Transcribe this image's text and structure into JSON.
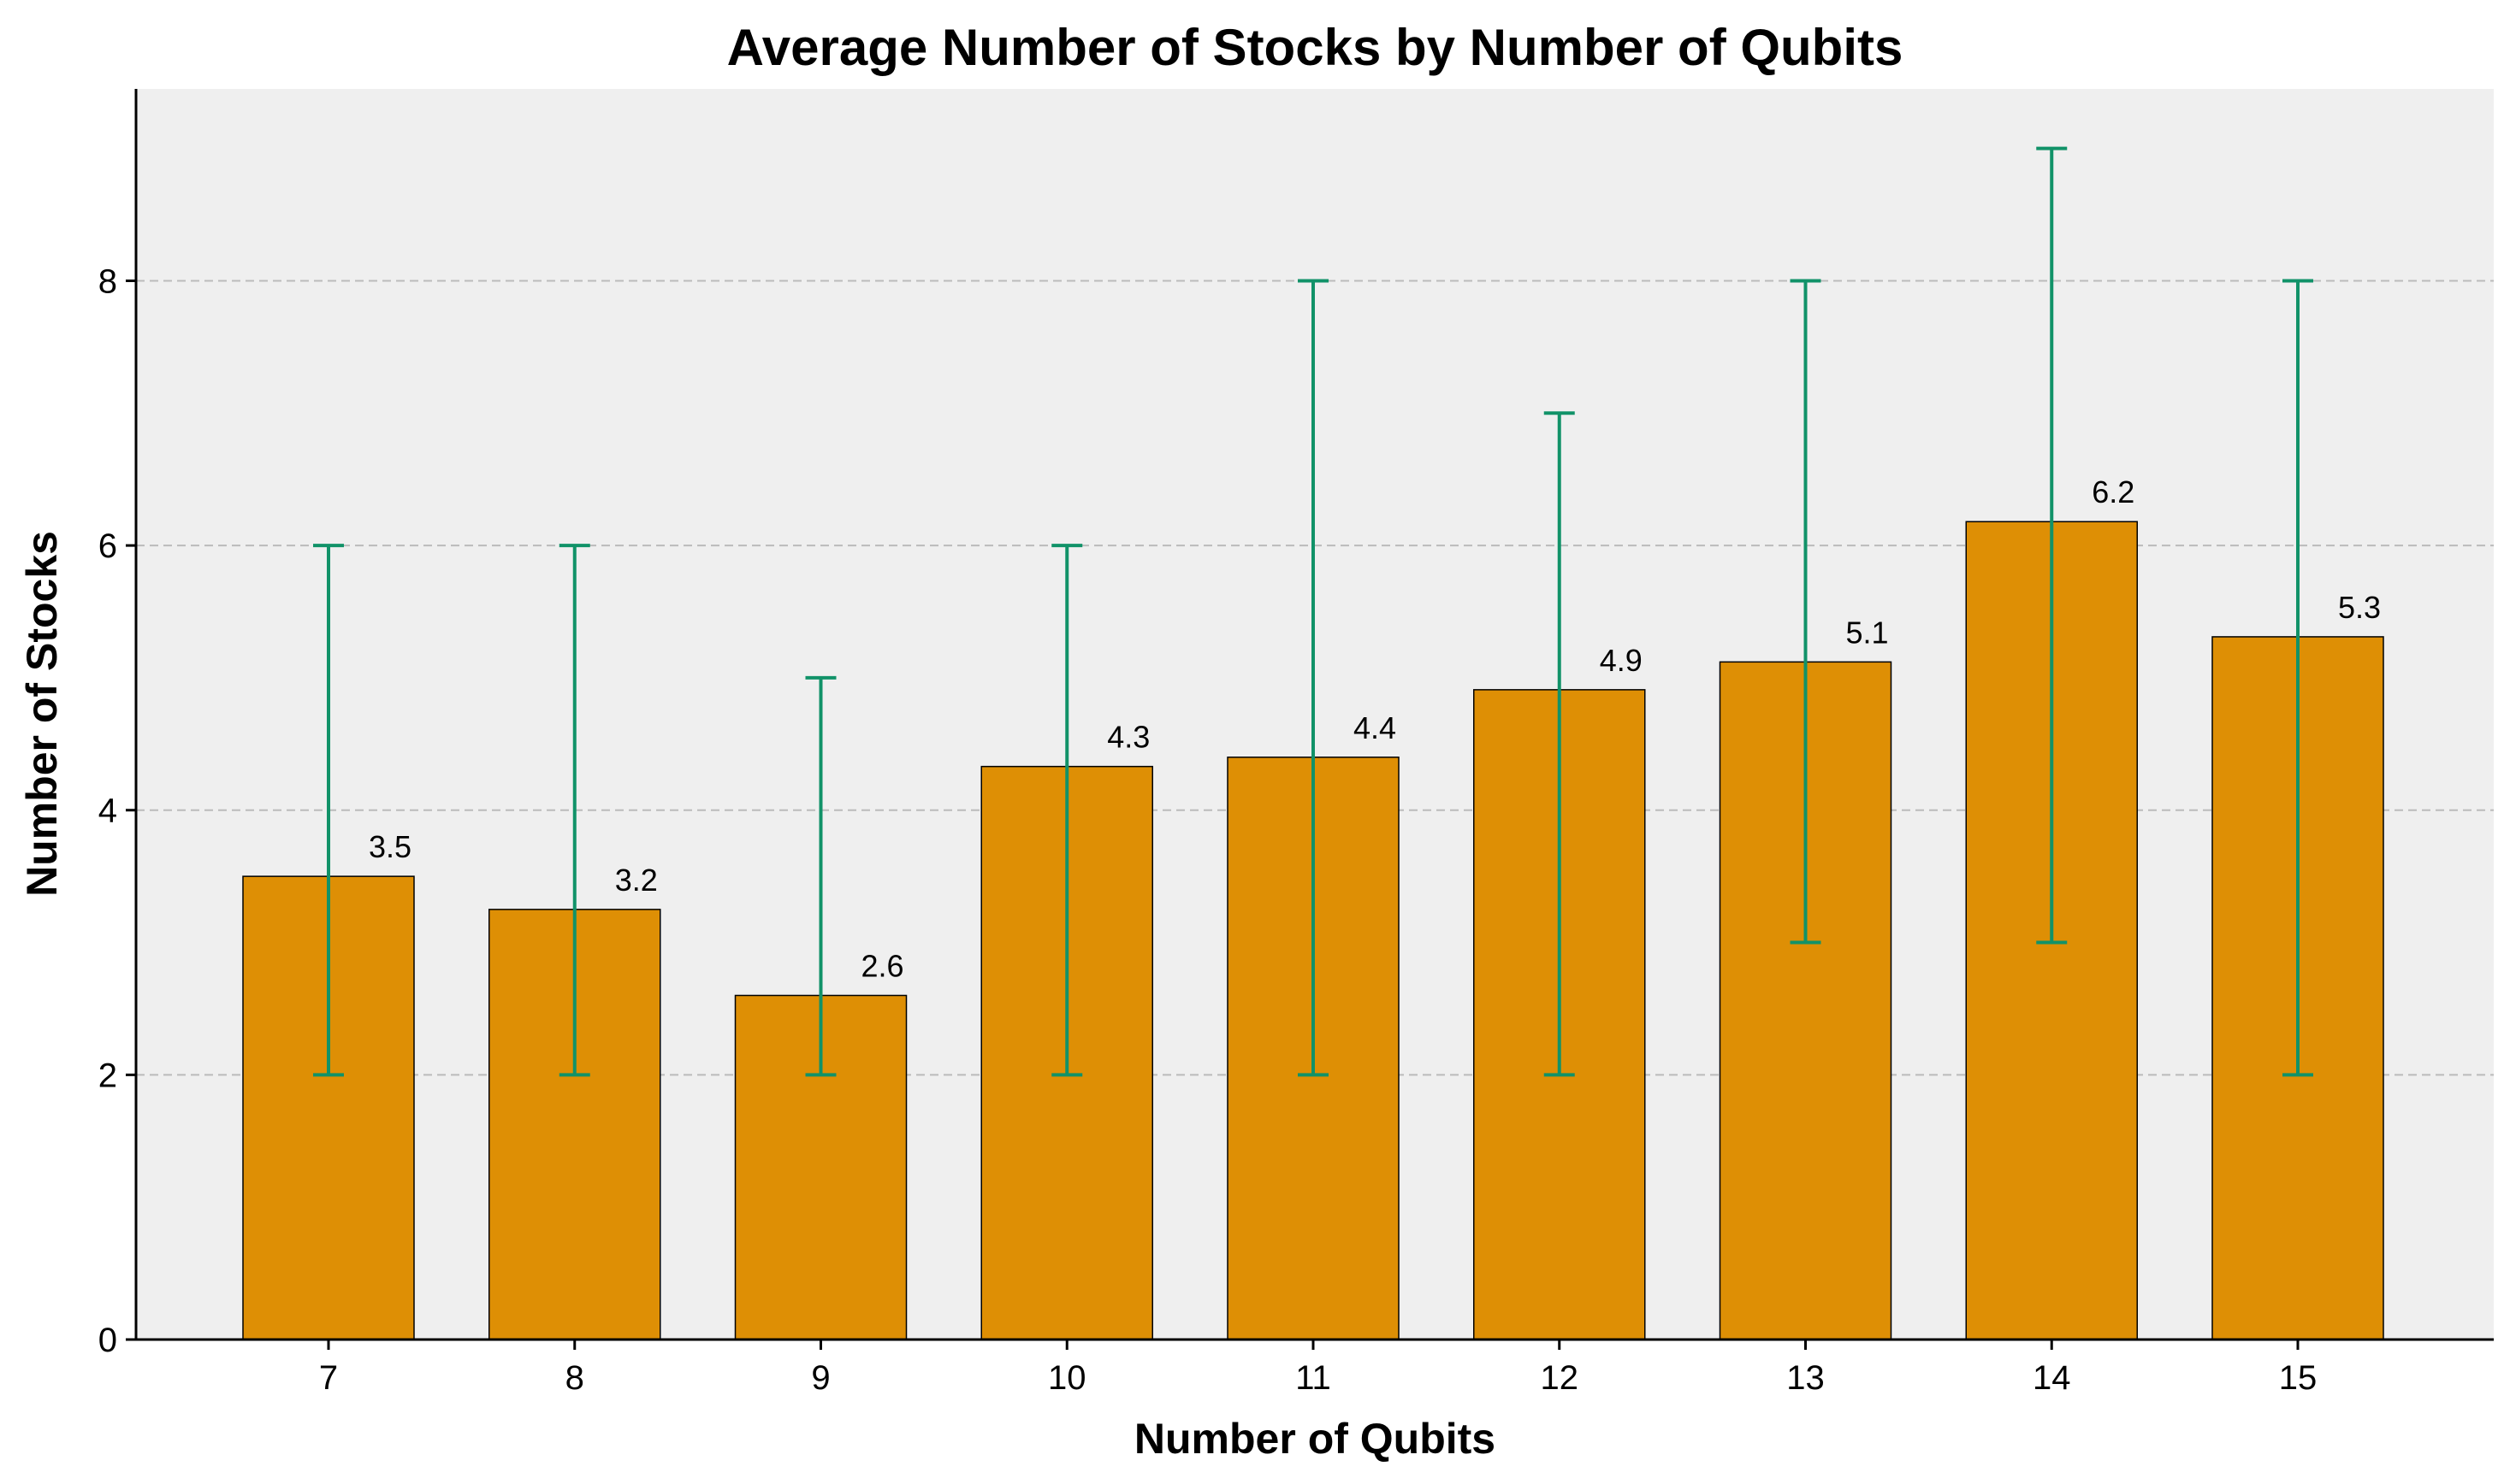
{
  "chart_data": {
    "type": "bar",
    "title": "Average Number of Stocks by Number of Qubits",
    "xlabel": "Number of Qubits",
    "ylabel": "Number of Stocks",
    "categories": [
      "7",
      "8",
      "9",
      "10",
      "11",
      "12",
      "13",
      "14",
      "15"
    ],
    "values": [
      3.5,
      3.25,
      2.6,
      4.33,
      4.4,
      4.91,
      5.12,
      6.18,
      5.31
    ],
    "value_labels": [
      "3.5",
      "3.2",
      "2.6",
      "4.3",
      "4.4",
      "4.9",
      "5.1",
      "6.2",
      "5.3"
    ],
    "error_low": [
      2,
      2,
      2,
      2,
      2,
      2,
      3,
      3,
      2
    ],
    "error_high": [
      6,
      6,
      5,
      6,
      8,
      7,
      8,
      9,
      8
    ],
    "ylim": [
      0,
      9.45
    ],
    "yticks": [
      0,
      2,
      4,
      6,
      8
    ],
    "grid": "y-dashed",
    "colors": {
      "bar": "#DE8F05",
      "bar_edge": "#000000",
      "error": "#119268",
      "plot_bg": "#EFEFEF",
      "grid": "#BBBBBB"
    }
  }
}
